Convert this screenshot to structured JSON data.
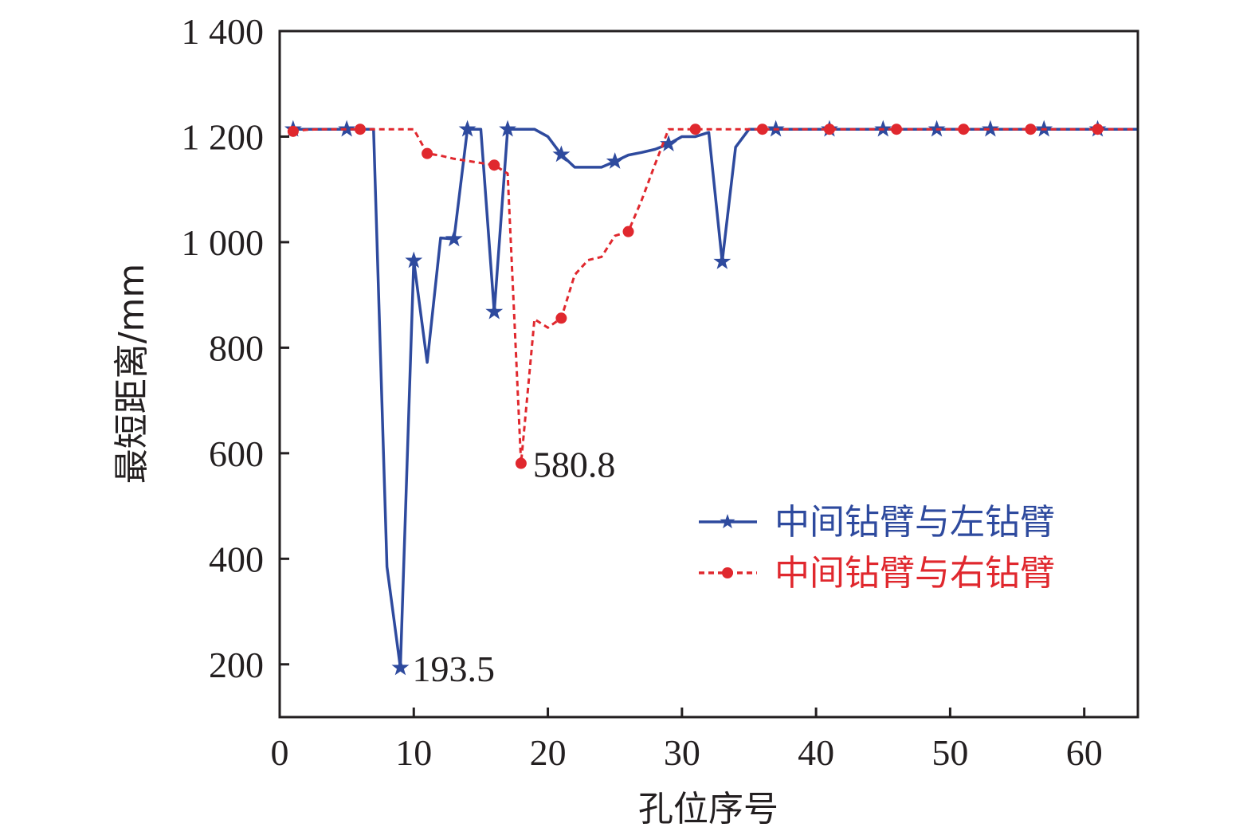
{
  "chart_data": {
    "type": "line",
    "xlabel": "孔位序号",
    "ylabel": "最短距离/mm",
    "xlim": [
      0,
      64
    ],
    "ylim": [
      100,
      1400
    ],
    "xticks": [
      0,
      10,
      20,
      30,
      40,
      50,
      60
    ],
    "yticks": [
      200,
      400,
      600,
      800,
      1000,
      1200,
      1400
    ],
    "xtick_labels": [
      "0",
      "10",
      "20",
      "30",
      "40",
      "50",
      "60"
    ],
    "ytick_labels": [
      "200",
      "400",
      "600",
      "800",
      "1 000",
      "1 200",
      "1 400"
    ],
    "grid": false,
    "legend_position": "right",
    "series": [
      {
        "name": "中间钻臂与左钻臂",
        "color": "#2e4a9e",
        "line_style": "solid",
        "marker": "star",
        "x": [
          1,
          2,
          3,
          4,
          5,
          6,
          7,
          8,
          9,
          10,
          11,
          12,
          13,
          14,
          15,
          16,
          17,
          18,
          19,
          20,
          21,
          22,
          23,
          24,
          25,
          26,
          27,
          28,
          29,
          30,
          31,
          32,
          33,
          34,
          35,
          36,
          37,
          38,
          39,
          40,
          41,
          42,
          43,
          44,
          45,
          46,
          47,
          48,
          49,
          50,
          51,
          52,
          53,
          54,
          55,
          56,
          57,
          58,
          59,
          60,
          61,
          62,
          63,
          64
        ],
        "y": [
          1214,
          1214,
          1214,
          1214,
          1214,
          1214,
          1214,
          385,
          193.5,
          965,
          772,
          1008,
          1006,
          1214,
          1214,
          868,
          1214,
          1214,
          1214,
          1200,
          1166,
          1142,
          1142,
          1142,
          1153,
          1165,
          1170,
          1176,
          1186,
          1200,
          1200,
          1208,
          963,
          1180,
          1214,
          1214,
          1214,
          1214,
          1214,
          1214,
          1214,
          1214,
          1214,
          1214,
          1214,
          1214,
          1214,
          1214,
          1214,
          1214,
          1214,
          1214,
          1214,
          1214,
          1214,
          1214,
          1214,
          1214,
          1214,
          1214,
          1214,
          1214,
          1214,
          1214
        ],
        "marker_x": [
          1,
          5,
          9,
          10,
          13,
          14,
          16,
          17,
          21,
          25,
          29,
          33,
          37,
          41,
          45,
          49,
          53,
          57,
          61
        ]
      },
      {
        "name": "中间钻臂与右钻臂",
        "color": "#e0282e",
        "line_style": "dashed",
        "marker": "circle",
        "x": [
          1,
          2,
          3,
          4,
          5,
          6,
          7,
          8,
          9,
          10,
          11,
          12,
          13,
          14,
          15,
          16,
          17,
          18,
          19,
          20,
          21,
          22,
          23,
          24,
          25,
          26,
          27,
          28,
          29,
          30,
          31,
          32,
          33,
          34,
          35,
          36,
          37,
          38,
          39,
          40,
          41,
          42,
          43,
          44,
          45,
          46,
          47,
          48,
          49,
          50,
          51,
          52,
          53,
          54,
          55,
          56,
          57,
          58,
          59,
          60,
          61,
          62,
          63,
          64
        ],
        "y": [
          1210,
          1213,
          1214,
          1214,
          1214,
          1214,
          1214,
          1214,
          1214,
          1214,
          1168,
          1164,
          1158,
          1154,
          1150,
          1146,
          1130,
          580.8,
          854,
          838,
          856,
          938,
          966,
          972,
          1012,
          1020,
          1080,
          1148,
          1214,
          1214,
          1214,
          1214,
          1214,
          1214,
          1214,
          1214,
          1214,
          1214,
          1214,
          1214,
          1214,
          1214,
          1214,
          1214,
          1214,
          1214,
          1214,
          1214,
          1214,
          1214,
          1214,
          1214,
          1214,
          1214,
          1214,
          1214,
          1214,
          1214,
          1214,
          1214,
          1214,
          1214,
          1214,
          1214
        ],
        "marker_x": [
          1,
          6,
          11,
          16,
          18,
          21,
          26,
          31,
          36,
          41,
          46,
          51,
          56,
          61
        ]
      }
    ],
    "annotations": [
      {
        "text": "193.5",
        "x": 9,
        "y": 193.5,
        "anchor": "right"
      },
      {
        "text": "580.8",
        "x": 18,
        "y": 580.8,
        "anchor": "right"
      }
    ]
  }
}
